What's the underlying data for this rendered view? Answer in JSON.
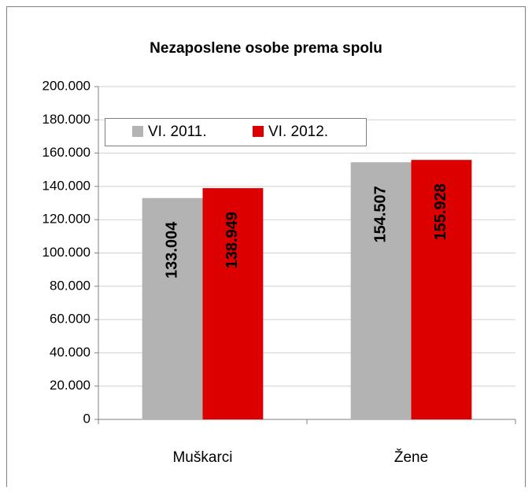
{
  "chart_data": {
    "type": "bar",
    "title": "Nezaposlene osobe prema spolu",
    "categories": [
      "Muškarci",
      "Žene"
    ],
    "series": [
      {
        "name": "VI. 2011.",
        "color": "#b3b3b3",
        "values": [
          133004,
          154507
        ],
        "value_labels": [
          "133.004",
          "154.507"
        ]
      },
      {
        "name": "VI. 2012.",
        "color": "#dd0000",
        "values": [
          138949,
          155928
        ],
        "value_labels": [
          "138.949",
          "155.928"
        ]
      }
    ],
    "ylim": [
      0,
      200000
    ],
    "yticks": [
      0,
      {
        "value": 20000,
        "label": "20.000"
      },
      {
        "value": 40000,
        "label": "40.000"
      },
      {
        "value": 60000,
        "label": "60.000"
      },
      {
        "value": 80000,
        "label": "80.000"
      },
      {
        "value": 100000,
        "label": "100.000"
      },
      {
        "value": 120000,
        "label": "120.000"
      },
      {
        "value": 140000,
        "label": "140.000"
      },
      {
        "value": 160000,
        "label": "160.000"
      },
      {
        "value": 180000,
        "label": "180.000"
      },
      {
        "value": 200000,
        "label": "200.000"
      }
    ],
    "grid": true,
    "legend": "top-left"
  }
}
